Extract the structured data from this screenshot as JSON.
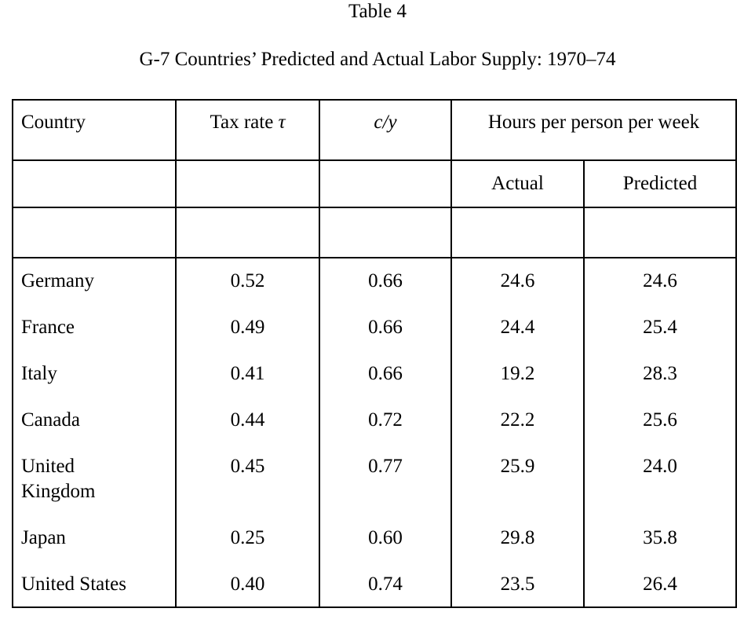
{
  "table_number": "Table 4",
  "title": "G-7 Countries’ Predicted and Actual Labor Supply: 1970–74",
  "headers": {
    "country": "Country",
    "tax_rate": "Tax rate",
    "tax_symbol": "τ",
    "cy": "c/y",
    "hours": "Hours per person per week",
    "actual": "Actual",
    "predicted": "Predicted"
  },
  "rows": [
    {
      "country": "Germany",
      "tax": "0.52",
      "cy": "0.66",
      "actual": "24.6",
      "predicted": "24.6"
    },
    {
      "country": "France",
      "tax": "0.49",
      "cy": "0.66",
      "actual": "24.4",
      "predicted": "25.4"
    },
    {
      "country": "Italy",
      "tax": "0.41",
      "cy": "0.66",
      "actual": "19.2",
      "predicted": "28.3"
    },
    {
      "country": "Canada",
      "tax": "0.44",
      "cy": "0.72",
      "actual": "22.2",
      "predicted": "25.6"
    },
    {
      "country": "United",
      "country_line2": "Kingdom",
      "tax": "0.45",
      "cy": "0.77",
      "actual": "25.9",
      "predicted": "24.0"
    },
    {
      "country": "Japan",
      "tax": "0.25",
      "cy": "0.60",
      "actual": "29.8",
      "predicted": "35.8"
    },
    {
      "country": "United States",
      "tax": "0.40",
      "cy": "0.74",
      "actual": "23.5",
      "predicted": "26.4"
    }
  ]
}
